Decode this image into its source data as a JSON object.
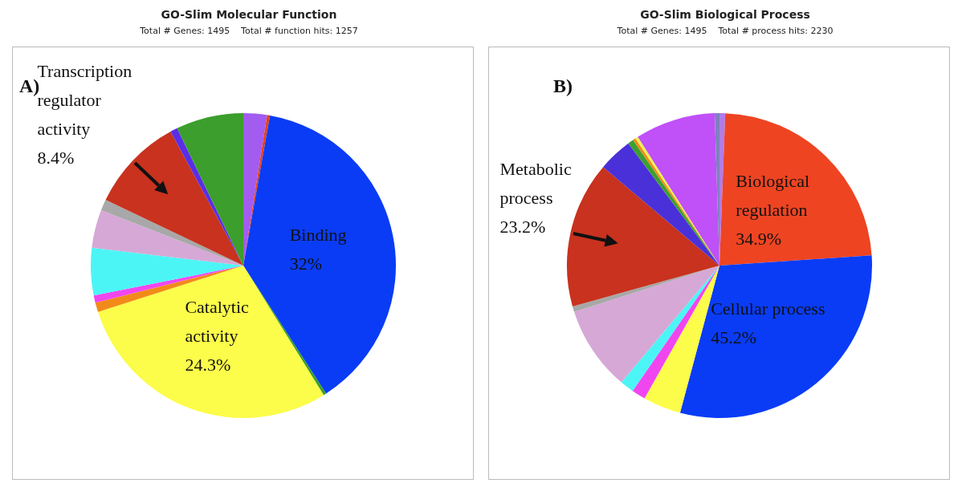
{
  "chart_data": [
    {
      "type": "pie",
      "title": "GO-Slim Molecular Function",
      "subtitle": "Total # Genes: 1495    Total # function hits: 1257",
      "annotations": [
        "A)"
      ],
      "legend": false,
      "categories": [
        null,
        null,
        "Binding",
        null,
        "Catalytic activity",
        null,
        null,
        null,
        null,
        null,
        "Transcription regulator activity",
        null,
        null
      ],
      "values": [
        2.1,
        0.25,
        32,
        0.25,
        24.3,
        0.85,
        0.65,
        4.2,
        3.4,
        1.0,
        8.4,
        0.65,
        6.0
      ],
      "value_labels": [
        null,
        null,
        "32%",
        null,
        "24.3%",
        null,
        null,
        null,
        null,
        null,
        "8.4%",
        null,
        null
      ],
      "colors": [
        "#a35cf0",
        "#e8401c",
        "#0a3cf5",
        "#39a02a",
        "#fcfc4a",
        "#f28a1a",
        "#f046f0",
        "#4cf5f5",
        "#d6a8d6",
        "#a8a8a8",
        "#c8321e",
        "#5a2ee6",
        "#3c9e2c"
      ]
    },
    {
      "type": "pie",
      "title": "GO-Slim Biological Process",
      "subtitle": "Total # Genes: 1495    Total # process hits: 2230",
      "annotations": [
        "B)"
      ],
      "legend": false,
      "categories": [
        null,
        "Biological regulation",
        "Cellular process",
        null,
        null,
        null,
        null,
        null,
        "Metabolic process",
        null,
        null,
        null,
        null,
        null,
        null
      ],
      "values": [
        0.9,
        34.9,
        45.2,
        6,
        2.2,
        2.2,
        13.4,
        0.9,
        23.2,
        5.4,
        0.9,
        0.45,
        0.45,
        12.7,
        0.75
      ],
      "value_labels": [
        null,
        "34.9%",
        "45.2%",
        null,
        null,
        null,
        null,
        null,
        "23.2%",
        null,
        null,
        null,
        null,
        null,
        null
      ],
      "colors": [
        "#b07ce8",
        "#ee4422",
        "#0a3cf5",
        "#fcfc4a",
        "#f046f0",
        "#4cf5f5",
        "#d6a8d6",
        "#a8a8a8",
        "#c8321e",
        "#4a30d8",
        "#3ca030",
        "#f28a1a",
        "#f0f050",
        "#c050f8",
        "#8080c0"
      ]
    }
  ]
}
